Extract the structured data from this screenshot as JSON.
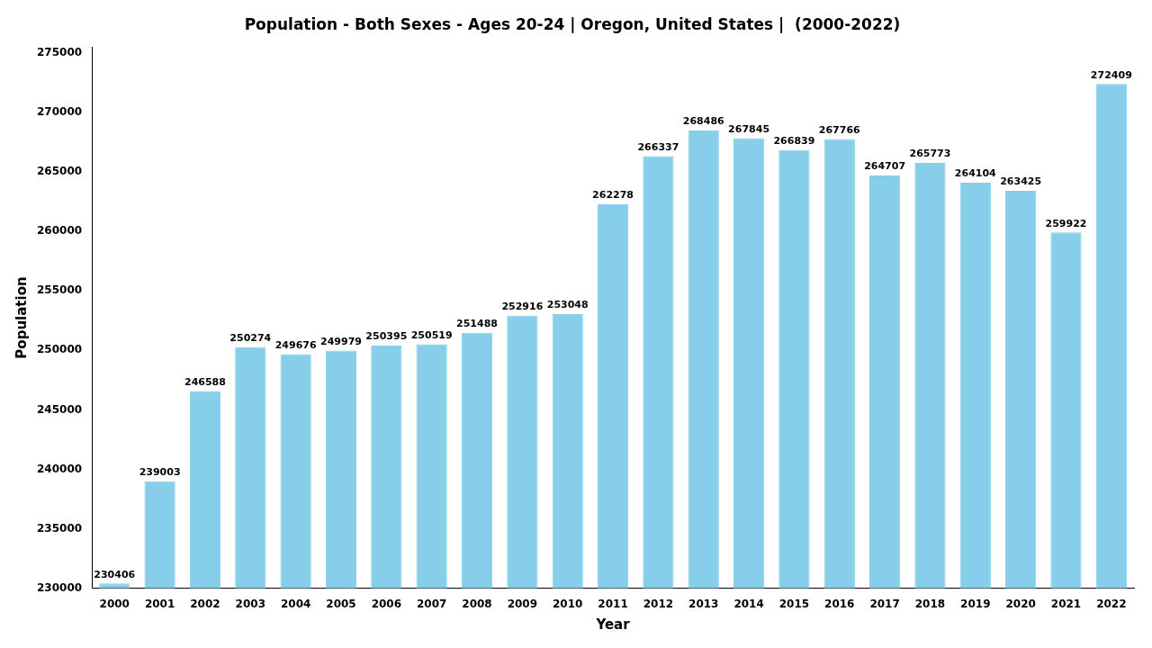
{
  "chart_data": {
    "type": "bar",
    "title": "Population - Both Sexes - Ages 20-24 | Oregon, United States |  (2000-2022)",
    "x_label": "Year",
    "y_label": "Population",
    "categories": [
      "2000",
      "2001",
      "2002",
      "2003",
      "2004",
      "2005",
      "2006",
      "2007",
      "2008",
      "2009",
      "2010",
      "2011",
      "2012",
      "2013",
      "2014",
      "2015",
      "2016",
      "2017",
      "2018",
      "2019",
      "2020",
      "2021",
      "2022"
    ],
    "values": [
      230406,
      239003,
      246588,
      250274,
      249676,
      249979,
      250395,
      250519,
      251488,
      252916,
      253048,
      262278,
      266337,
      268486,
      267845,
      266839,
      267766,
      264707,
      265773,
      264104,
      263425,
      259922,
      272409
    ],
    "color": "#87CEEB",
    "ylim": [
      230000,
      275500
    ],
    "yticks": [
      230000,
      235000,
      240000,
      245000,
      250000,
      255000,
      260000,
      265000,
      270000,
      275000
    ],
    "grid": false,
    "data_labels": true
  }
}
